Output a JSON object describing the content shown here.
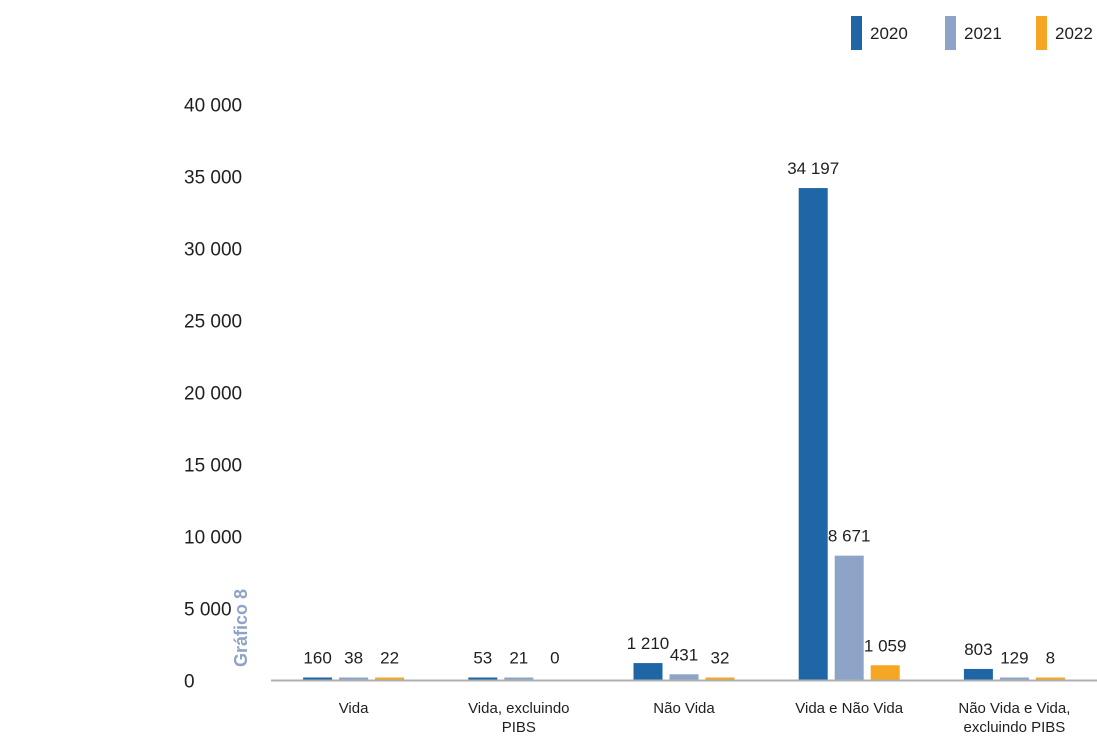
{
  "side_label": "Gráfico 8",
  "side_label_color": "#8ea3c8",
  "chart_data": {
    "type": "bar",
    "categories": [
      [
        "Vida"
      ],
      [
        "Vida, excluindo",
        "PIBS"
      ],
      [
        "Não Vida"
      ],
      [
        "Vida e Não Vida"
      ],
      [
        "Não Vida e Vida,",
        "excluindo PIBS"
      ]
    ],
    "series": [
      {
        "name": "2020",
        "color": "#1f66a6",
        "values": [
          160,
          53,
          1210,
          34197,
          803
        ],
        "labels": [
          "160",
          "53",
          "1 210",
          "34 197",
          "803"
        ]
      },
      {
        "name": "2021",
        "color": "#8ea3c8",
        "values": [
          38,
          21,
          431,
          8671,
          129
        ],
        "labels": [
          "38",
          "21",
          "431",
          "8 671",
          "129"
        ]
      },
      {
        "name": "2022",
        "color": "#f5a623",
        "values": [
          22,
          0,
          32,
          1059,
          8
        ],
        "labels": [
          "22",
          "0",
          "32",
          "1 059",
          "8"
        ]
      }
    ],
    "yticks": [
      "0",
      "5 000",
      "10 000",
      "15 000",
      "20 000",
      "25 000",
      "30 000",
      "35 000",
      "40 000"
    ],
    "ylim": [
      0,
      40000
    ],
    "legend_position": "top-right",
    "axis_color": "#b0b0b0",
    "grid": false
  }
}
